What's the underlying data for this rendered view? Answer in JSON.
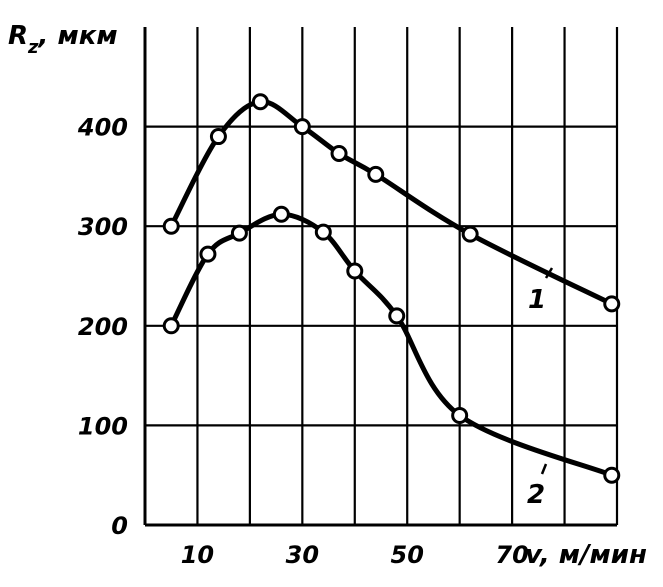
{
  "chart_data": {
    "type": "line",
    "title": "",
    "xlabel": "v, м/мин",
    "ylabel": "R z , мкм",
    "ylabel_main": "R",
    "ylabel_sub": "z",
    "ylabel_unit": ", мкм",
    "xlim": [
      0,
      90
    ],
    "ylim": [
      0,
      500
    ],
    "grid": true,
    "x_ticks": [
      10,
      30,
      50,
      70
    ],
    "x_tick_labels": [
      "10",
      "30",
      "50",
      "70"
    ],
    "y_ticks": [
      0,
      100,
      200,
      300,
      400
    ],
    "y_tick_labels": [
      "0",
      "100",
      "200",
      "300",
      "400"
    ],
    "series": [
      {
        "name": "1",
        "color": "#000000",
        "x": [
          5,
          14,
          22,
          30,
          37,
          44,
          62,
          89
        ],
        "y": [
          300,
          390,
          425,
          400,
          373,
          352,
          292,
          222
        ]
      },
      {
        "name": "2",
        "color": "#000000",
        "x": [
          5,
          12,
          18,
          26,
          34,
          40,
          48,
          60,
          89
        ],
        "y": [
          200,
          272,
          293,
          312,
          294,
          255,
          210,
          110,
          50
        ]
      }
    ]
  }
}
